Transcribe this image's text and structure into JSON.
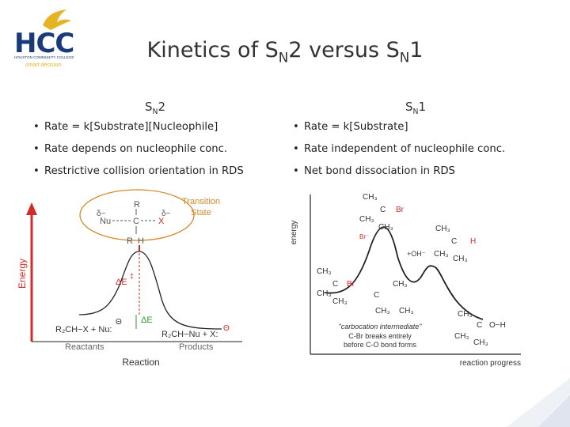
{
  "logo": {
    "text": "HCC",
    "subtitle": "HOUSTON COMMUNITY COLLEGE",
    "tagline": "smart decision",
    "colors": {
      "blue": "#1a3a7a",
      "gold": "#e6b422"
    }
  },
  "slide": {
    "title": "Kinetics of S",
    "title_sub": "N",
    "title_rest": "2 versus S",
    "title_sub2": "N",
    "title_end": "1"
  },
  "sn2": {
    "head": "S",
    "head_sub": "N",
    "head_num": "2",
    "bullets": [
      "Rate = k[Substrate][Nucleophile]",
      "Rate depends on nucleophile conc.",
      "Restrictive collision orientation in RDS"
    ]
  },
  "sn1": {
    "head": "S",
    "head_sub": "N",
    "head_num": "1",
    "bullets": [
      "Rate = k[Substrate]",
      "Rate independent of nucleophile conc.",
      "Net bond dissociation in RDS"
    ]
  },
  "sn2_diagram": {
    "y_label": "Energy",
    "x_label": "Reaction",
    "ts_label": [
      "Transition",
      "State"
    ],
    "ts_structure": {
      "top_r": "R",
      "left_charge": "δ−",
      "nu": "Nu",
      "center": "C",
      "right_charge": "δ−",
      "leaving": "X",
      "bottom": "R  H"
    },
    "activation": "ΔE",
    "activation_mark": "‡",
    "delta_e": "ΔE",
    "reactants_formula": "R₂CH−X + Nu:",
    "reactants_charge": "Θ",
    "reactants": "Reactants",
    "products_formula": "R₂CH−Nu + X:",
    "products_charge": "Θ",
    "products": "Products",
    "colors": {
      "arrow": "#d42a2a",
      "ellipse": "#d08a2a",
      "curve": "#222222",
      "highlight": "#d42a2a"
    }
  },
  "sn1_diagram": {
    "y_label": "energy",
    "x_label": "reaction progress",
    "intermediate": "\"carbocation intermediate\"",
    "note1": "C-Br breaks entirely",
    "note2": "before C-O bond forms",
    "reactant": {
      "ch3_top": "CH₃",
      "c": "C",
      "br": "Br",
      "ch3_mid": "CH₃",
      "ch3_bot": "CH₃"
    },
    "ts1": {
      "top": "CH₃",
      "c": "C",
      "br": "Br",
      "ch3a": "CH₃",
      "ch3b": "CH₃"
    },
    "ts2": {
      "top": "CH₃",
      "c": "C",
      "oh": "+OH⁻",
      "ch3": "CH₃",
      "ch3b": "CH₃",
      "h": "H"
    },
    "carbocation": {
      "ch3_left": "CH₃",
      "c": "C",
      "br": "Br⁻",
      "ch3_bot": "CH₃",
      "ch3_right": "CH₃"
    },
    "intermediate_mol": {
      "ch3_top": "CH₃",
      "c": "C",
      "ch3_l": "CH₃",
      "ch3_r": "CH₃"
    },
    "product": {
      "ch3_top": "CH₃",
      "c": "C",
      "oh": "O−H",
      "ch3_l": "CH₃",
      "ch3_b": "CH₃"
    },
    "colors": {
      "highlight": "#d42a2a",
      "curve": "#222222"
    }
  }
}
